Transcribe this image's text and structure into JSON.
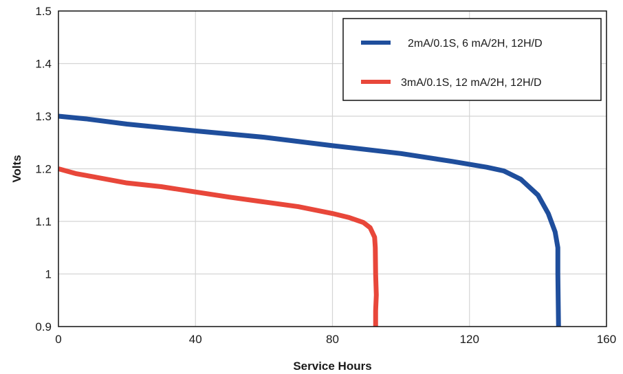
{
  "chart_data": {
    "type": "line",
    "title": "",
    "xlabel": "Service Hours",
    "ylabel": "Volts",
    "xlim": [
      0,
      160
    ],
    "ylim": [
      0.9,
      1.5
    ],
    "xticks": [
      0,
      40,
      80,
      120,
      160
    ],
    "xtick_labels": [
      "0",
      "40",
      "80",
      "120",
      "160"
    ],
    "yticks": [
      0.9,
      1.0,
      1.1,
      1.2,
      1.3,
      1.4,
      1.5
    ],
    "ytick_labels": [
      "0.9",
      "1",
      "1.1",
      "1.2",
      "1.3",
      "1.4",
      "1.5"
    ],
    "grid": true,
    "legend_position": "top-right",
    "series": [
      {
        "name": "2mA/0.1S, 6 mA/2H, 12H/D",
        "color": "#1f4e9c",
        "points": [
          [
            0,
            1.3
          ],
          [
            8,
            1.295
          ],
          [
            20,
            1.285
          ],
          [
            40,
            1.272
          ],
          [
            60,
            1.26
          ],
          [
            80,
            1.244
          ],
          [
            100,
            1.229
          ],
          [
            115,
            1.214
          ],
          [
            125,
            1.203
          ],
          [
            130,
            1.196
          ],
          [
            135,
            1.18
          ],
          [
            140,
            1.15
          ],
          [
            143,
            1.115
          ],
          [
            145,
            1.08
          ],
          [
            145.8,
            1.05
          ],
          [
            145.8,
            1.0
          ],
          [
            145.9,
            0.95
          ],
          [
            146.0,
            0.9
          ]
        ]
      },
      {
        "name": "3mA/0.1S, 12 mA/2H, 12H/D",
        "color": "#e8473a",
        "points": [
          [
            0,
            1.2
          ],
          [
            5,
            1.191
          ],
          [
            10,
            1.185
          ],
          [
            20,
            1.173
          ],
          [
            30,
            1.166
          ],
          [
            40,
            1.156
          ],
          [
            50,
            1.146
          ],
          [
            60,
            1.137
          ],
          [
            70,
            1.128
          ],
          [
            80,
            1.115
          ],
          [
            85,
            1.107
          ],
          [
            89,
            1.098
          ],
          [
            91,
            1.088
          ],
          [
            92.3,
            1.07
          ],
          [
            92.5,
            1.05
          ],
          [
            92.6,
            1.0
          ],
          [
            92.8,
            0.96
          ],
          [
            92.6,
            0.93
          ],
          [
            92.6,
            0.9
          ]
        ]
      }
    ]
  }
}
